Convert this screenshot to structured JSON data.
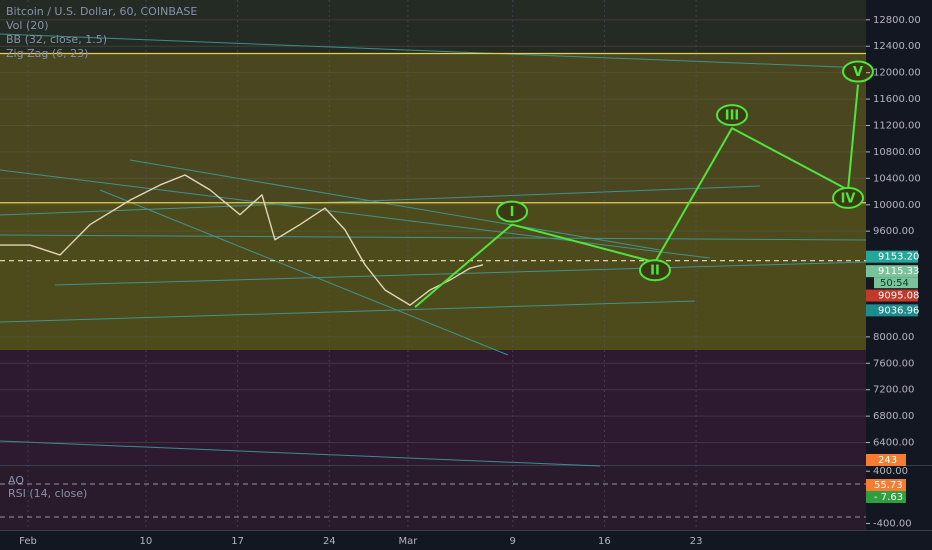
{
  "header": {
    "title": "Bitcoin / U.S. Dollar, 60, COINBASE",
    "indicators": [
      "Vol (20)",
      "BB (32, close, 1.5)",
      "Zig Zag (6, 23)"
    ]
  },
  "chart_data": {
    "type": "line",
    "color": "#e2d6b6",
    "x": [
      -2.14,
      0.15,
      2.44,
      4.73,
      7.79,
      10.08,
      11.98,
      13.89,
      16.18,
      17.86,
      18.85,
      20.76,
      22.67,
      24.2,
      25.73,
      27.25,
      29.16,
      30.69,
      32.21,
      33.74,
      34.73
    ],
    "values": [
      9390,
      9390,
      9240,
      9700,
      10070,
      10300,
      10450,
      10225,
      9850,
      10150,
      9470,
      9700,
      9950,
      9620,
      9090,
      8710,
      8480,
      8710,
      8860,
      9040,
      9090
    ],
    "projection": {
      "color": "#4ee63c",
      "x": [
        29.54,
        36.95,
        47.86,
        53.74,
        62.6,
        63.36
      ],
      "values": [
        8450,
        9700,
        9130,
        11160,
        10225,
        11820
      ],
      "labels": [
        null,
        "I",
        "II",
        "III",
        "IV",
        "V"
      ]
    },
    "levels": [
      {
        "value": 12290,
        "color": "#e6d24a"
      },
      {
        "value": 10030,
        "color": "#e6d24a"
      },
      {
        "value": 9153.2,
        "color": "#e6e6c0",
        "dashed": true
      }
    ],
    "xlim": [
      -2.14,
      63.97
    ],
    "ylim": [
      6060,
      13100
    ],
    "xticks": [
      {
        "value": 0,
        "label": "Feb"
      },
      {
        "value": 9,
        "label": "10"
      },
      {
        "value": 16,
        "label": "17"
      },
      {
        "value": 23,
        "label": "24"
      },
      {
        "value": 29,
        "label": "Mar"
      },
      {
        "value": 37,
        "label": "9"
      },
      {
        "value": 44,
        "label": "16"
      },
      {
        "value": 51,
        "label": "23"
      }
    ],
    "yticks": [
      {
        "value": 6400,
        "label": "6400.00"
      },
      {
        "value": 6800,
        "label": "6800.00"
      },
      {
        "value": 7200,
        "label": "7200.00"
      },
      {
        "value": 7600,
        "label": "7600.00"
      },
      {
        "value": 8000,
        "label": "8000.00"
      },
      {
        "value": 9600,
        "label": "9600.00"
      },
      {
        "value": 10000,
        "label": "10000.00"
      },
      {
        "value": 10400,
        "label": "10400.00"
      },
      {
        "value": 10800,
        "label": "10800.00"
      },
      {
        "value": 11200,
        "label": "11200.00"
      },
      {
        "value": 11600,
        "label": "11600.00"
      },
      {
        "value": 12000,
        "label": "12000.00"
      },
      {
        "value": 12400,
        "label": "12400.00"
      },
      {
        "value": 12800,
        "label": "12800.00"
      }
    ],
    "price_labels": [
      {
        "value": 9153.2,
        "label": "9153.20",
        "color": "#26a69a"
      },
      {
        "value": 9115.33,
        "label": "9115.33",
        "color": "#7ac29a"
      },
      {
        "value": 9095.08,
        "label": "9095.08",
        "color": "#c0392b"
      },
      {
        "value": 9036.96,
        "label": "9036.96",
        "color": "#1e8c8c"
      }
    ],
    "countdown": "50:54",
    "volume_label": 243
  },
  "oscillator": {
    "titles": [
      "AO",
      "RSI (14, close)"
    ],
    "ylim": [
      -500,
      480
    ],
    "yticks": [
      {
        "value": 400,
        "label": "400.00"
      },
      {
        "value": -400,
        "label": "-400.00"
      }
    ],
    "labels": [
      {
        "value": 55.73,
        "label": "55.73",
        "color": "#f57c30"
      },
      {
        "value": -7.63,
        "label": "- 7.63",
        "color": "#2e9e3e"
      }
    ]
  }
}
